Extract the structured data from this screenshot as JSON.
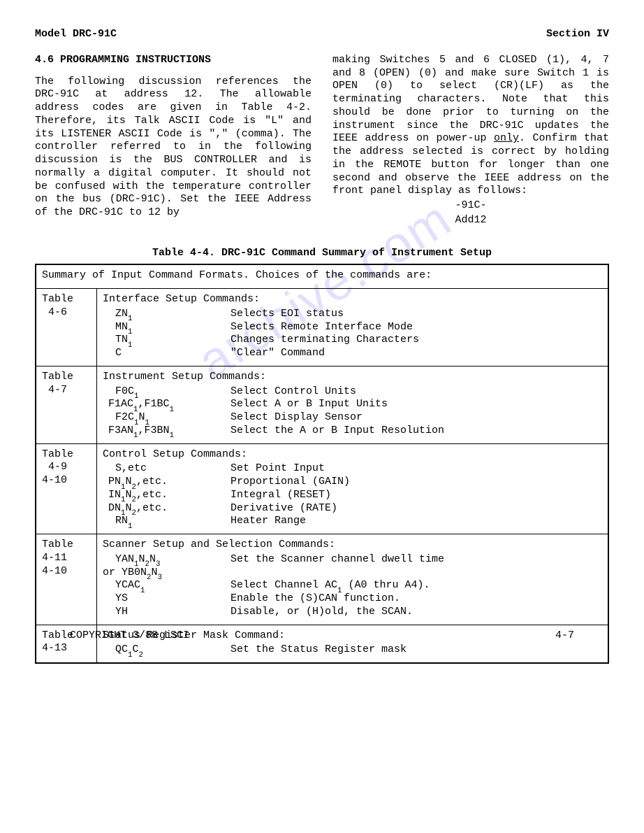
{
  "header": {
    "model": "Model DRC-91C",
    "section": "Section IV"
  },
  "section_title": "4.6 PROGRAMMING INSTRUCTIONS",
  "col_left": "The following discussion references the DRC-91C at address 12.  The allowable address codes are given in Table 4-2.  Therefore, its Talk ASCII Code is \"L\" and its LISTENER ASCII Code is \",\" (comma).  The controller referred to in the following discussion is the BUS CONTROLLER and is normally a digital computer.  It should not be confused with the temperature controller on the bus (DRC-91C).  Set the IEEE Address of the DRC-91C to 12 by",
  "col_right_a": "making Switches 5 and 6 CLOSED (1), 4, 7 and 8 (OPEN) (0) and make sure Switch 1 is OPEN (0) to select (CR)(LF) as the terminating characters.  Note that this should be done prior to turning on the instrument since the DRC-91C updates the IEEE address on power-up ",
  "col_right_only": "only",
  "col_right_b": ". Confirm that the address selected is correct by holding in the REMOTE button for longer than one second and observe the IEEE address on the front panel display as follows:",
  "display_line1": "-91C-",
  "display_line2": "Add12",
  "table_caption": "Table 4-4.  DRC-91C Command Summary of Instrument Setup",
  "table": {
    "top": "Summary of Input Command Formats.  Choices of the commands are:",
    "groups": [
      {
        "ref": "Table\n 4-6",
        "title": "Interface Setup Commands:",
        "rows": [
          {
            "code": "ZN<sub>1</sub>",
            "desc": "Selects EOI status"
          },
          {
            "code": "MN<sub>1</sub>",
            "desc": "Selects Remote Interface Mode"
          },
          {
            "code": "TN<sub>1</sub>",
            "desc": "Changes terminating Characters"
          },
          {
            "code": "C",
            "desc": "\"Clear\" Command"
          }
        ]
      },
      {
        "ref": "Table\n 4-7",
        "title": "Instrument Setup Commands:",
        "rows": [
          {
            "code": "F0C<sub>1</sub>",
            "desc": "Select Control Units"
          },
          {
            "code": "F1AC<sub>1</sub>,F1BC<sub>1</sub>",
            "desc": "Select A or B Input Units",
            "indent": 0
          },
          {
            "code": "F2C<sub>1</sub>N<sub>1</sub>",
            "desc": "Select Display Sensor"
          },
          {
            "code": "F3AN<sub>1</sub>,F3BN<sub>1</sub>",
            "desc": "Select the A or B Input Resolution",
            "indent": 0
          }
        ]
      },
      {
        "ref": "Table\n 4-9\n4-10",
        "title": "Control Setup Commands:",
        "rows": [
          {
            "code": "S,etc",
            "desc": "Set Point Input"
          },
          {
            "code": "PN<sub>1</sub>N<sub>2</sub>,etc.",
            "desc": "Proportional (GAIN)",
            "indent": 0
          },
          {
            "code": "IN<sub>1</sub>N<sub>2</sub>,etc.",
            "desc": "Integral (RESET)",
            "indent": 0
          },
          {
            "code": "DN<sub>1</sub>N<sub>2</sub>,etc.",
            "desc": "Derivative (RATE)",
            "indent": 0
          },
          {
            "code": "RN<sub>1</sub>",
            "desc": "Heater Range"
          }
        ]
      },
      {
        "ref": "Table\n4-11\n4-10",
        "title": "Scanner Setup and Selection Commands:",
        "rows": [
          {
            "code": "YAN<sub>1</sub>N<sub>2</sub>N<sub>3</sub>",
            "desc": "Set the Scanner channel dwell time"
          },
          {
            "code_raw": "or YB0N<sub>2</sub>N<sub>3</sub>",
            "desc": "",
            "indent": -1
          },
          {
            "code": "YCAC<sub>1</sub>",
            "desc": "Select Channel AC<sub>1</sub> (A0 thru A4)."
          },
          {
            "code": "YS",
            "desc": "Enable the (S)CAN function."
          },
          {
            "code": "YH",
            "desc": "Disable, or (H)old, the SCAN."
          }
        ]
      },
      {
        "ref": "Table\n4-13",
        "title": "Status Register Mask Command:",
        "rows": [
          {
            "code": "QC<sub>1</sub>C<sub>2</sub>",
            "desc": "Set the Status Register mask"
          }
        ]
      }
    ]
  },
  "footer": {
    "left": "COPYRIGHT 3/88 LSCI",
    "right": "4-7"
  },
  "watermark": "archive.com"
}
